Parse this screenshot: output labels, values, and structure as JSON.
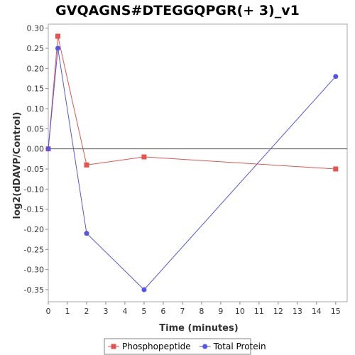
{
  "chart_data": {
    "type": "line",
    "title": "GVQAGNS#DTEGGQPGR(+ 3)_v1",
    "xlabel": "Time (minutes)",
    "ylabel": "log2(dDAVP/Control)",
    "xlim": [
      0,
      15.6
    ],
    "ylim": [
      -0.38,
      0.31
    ],
    "xticks": [
      0,
      1,
      2,
      3,
      4,
      5,
      6,
      7,
      8,
      9,
      10,
      11,
      12,
      13,
      14,
      15
    ],
    "yticks": [
      0.3,
      0.25,
      0.2,
      0.15,
      0.1,
      0.05,
      0.0,
      -0.05,
      -0.1,
      -0.15,
      -0.2,
      -0.25,
      -0.3,
      -0.35
    ],
    "ytick_labels": [
      "0.30",
      "0.25",
      "0.20",
      "0.15",
      "0.10",
      "0.05",
      "0.00",
      "-0.05",
      "-0.10",
      "-0.15",
      "-0.20",
      "-0.25",
      "-0.30",
      "-0.35"
    ],
    "zero_line": true,
    "grid": false,
    "legend_position": "bottom",
    "series": [
      {
        "name": "Phosphopeptide",
        "color": "#e8534f",
        "marker": "square",
        "x": [
          0,
          0.5,
          2,
          5,
          15
        ],
        "y": [
          0.0,
          0.28,
          -0.04,
          -0.02,
          -0.05
        ]
      },
      {
        "name": "Total Protein",
        "color": "#5555ee",
        "marker": "circle",
        "x": [
          0,
          0.5,
          2,
          5,
          15
        ],
        "y": [
          0.0,
          0.25,
          -0.21,
          -0.35,
          0.18
        ]
      }
    ]
  }
}
